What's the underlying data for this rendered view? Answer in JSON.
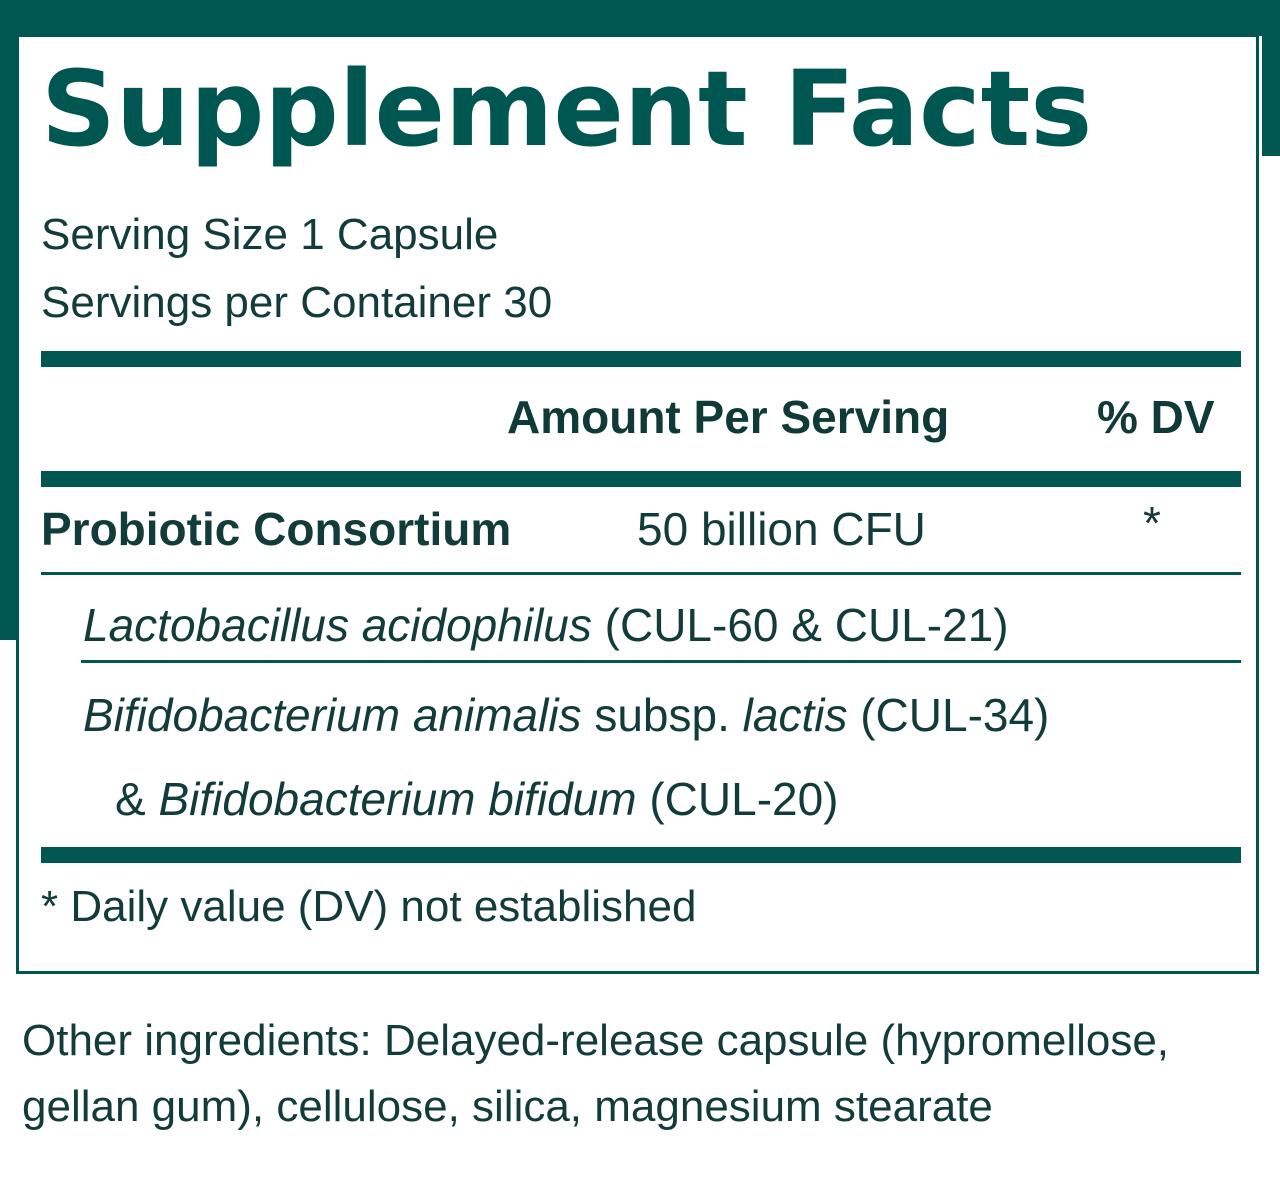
{
  "title": "Supplement Facts",
  "serving_size": "Serving Size 1 Capsule",
  "servings_per_container": "Servings per Container 30",
  "header": {
    "amount_label": "Amount Per Serving",
    "dv_label": "% DV"
  },
  "main_row": {
    "name": "Probiotic Consortium",
    "amount": "50 billion CFU",
    "dv": "*"
  },
  "strain1": {
    "species": "Lactobacillus acidophilus",
    "strains": "(CUL-60 & CUL-21)"
  },
  "strain2": {
    "species": "Bifidobacterium animalis",
    "subsp": "subsp.",
    "subspecies": "lactis",
    "strain_a": "(CUL-34)",
    "amp": "&",
    "species_b": "Bifidobacterium bifidum",
    "strain_b": "(CUL-20)"
  },
  "footnote": "* Daily value (DV) not established",
  "other_ingredients": "Other ingredients: Delayed-release capsule (hypromellose, gellan gum), cellulose, silica, magnesium stearate",
  "colors": {
    "brand": "#005650",
    "text": "#123c3a"
  }
}
